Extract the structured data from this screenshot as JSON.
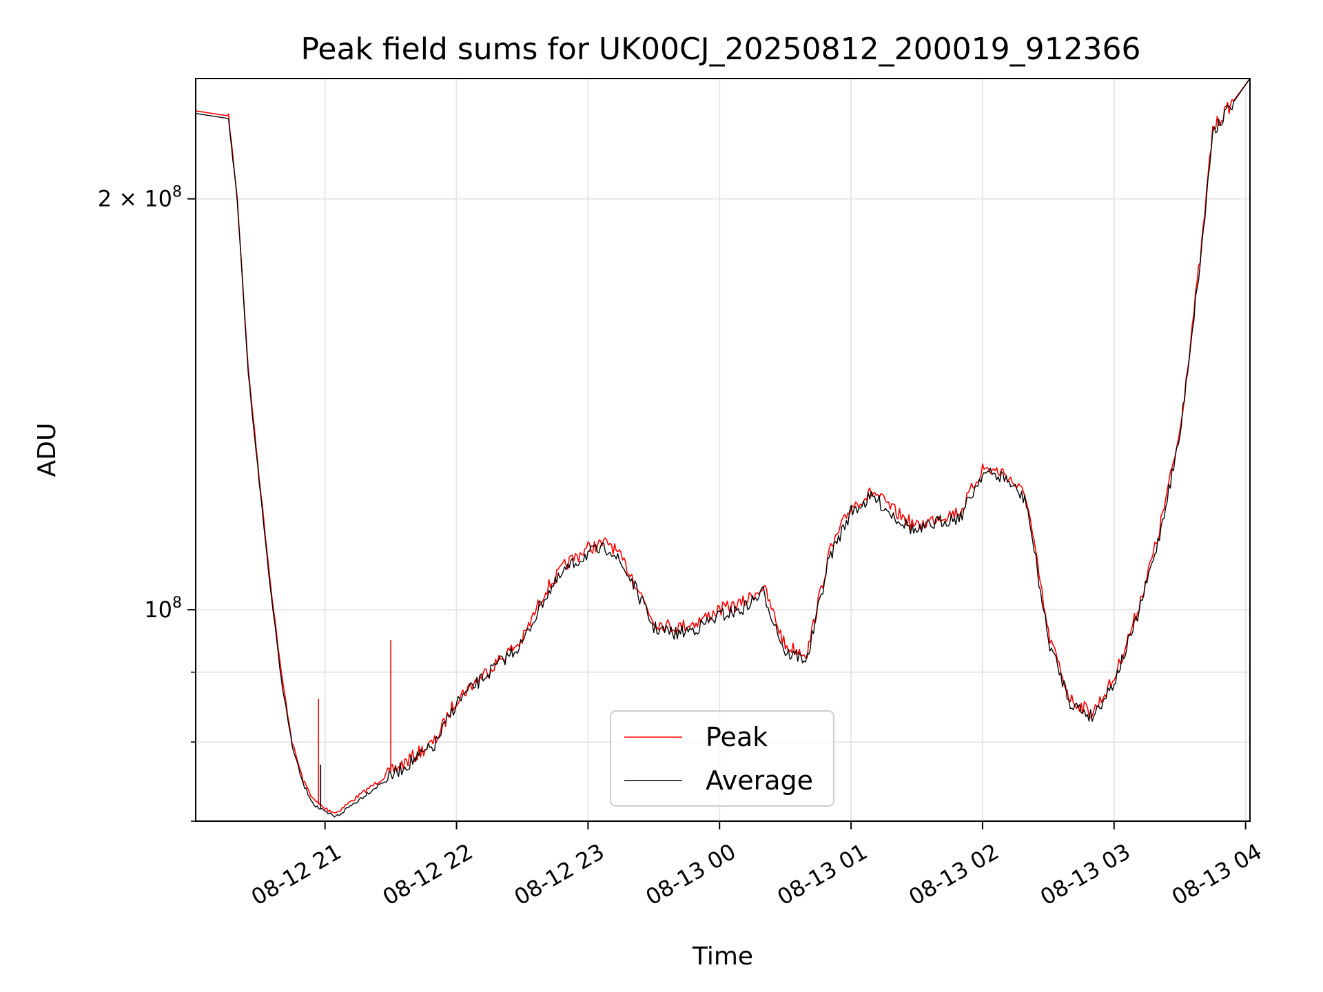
{
  "chart_data": {
    "type": "line",
    "title": "Peak field sums for UK00CJ_20250812_200019_912366",
    "xlabel": "Time",
    "ylabel": "ADU",
    "yscale": "log",
    "grid": true,
    "legend_position": "lower center",
    "xlim": [
      "2025-08-12 20:01",
      "2025-08-13 04:02"
    ],
    "ylim": [
      70000000,
      245000000
    ],
    "x_ticks": [
      "08-12 21",
      "08-12 22",
      "08-12 23",
      "08-13 00",
      "08-13 01",
      "08-13 02",
      "08-13 03",
      "08-13 04"
    ],
    "y_ticks": [
      {
        "value": 100000000,
        "base": "10",
        "exp": "8",
        "prefix": ""
      },
      {
        "value": 200000000,
        "base": "10",
        "exp": "8",
        "prefix": "2 × "
      }
    ],
    "y_minor_ticks": [
      70000000,
      80000000,
      90000000
    ],
    "x": [
      "2025-08-12 20:01",
      "2025-08-12 20:16",
      "2025-08-12 20:20",
      "2025-08-12 20:25",
      "2025-08-12 20:30",
      "2025-08-12 20:35",
      "2025-08-12 20:40",
      "2025-08-12 20:45",
      "2025-08-12 20:50",
      "2025-08-12 20:55",
      "2025-08-12 21:00",
      "2025-08-12 21:05",
      "2025-08-12 21:10",
      "2025-08-12 21:20",
      "2025-08-12 21:30",
      "2025-08-12 21:40",
      "2025-08-12 21:50",
      "2025-08-12 22:00",
      "2025-08-12 22:10",
      "2025-08-12 22:20",
      "2025-08-12 22:30",
      "2025-08-12 22:40",
      "2025-08-12 22:50",
      "2025-08-12 23:00",
      "2025-08-12 23:10",
      "2025-08-12 23:20",
      "2025-08-12 23:30",
      "2025-08-12 23:40",
      "2025-08-12 23:50",
      "2025-08-13 00:00",
      "2025-08-13 00:10",
      "2025-08-13 00:20",
      "2025-08-13 00:30",
      "2025-08-13 00:40",
      "2025-08-13 00:50",
      "2025-08-13 01:00",
      "2025-08-13 01:10",
      "2025-08-13 01:20",
      "2025-08-13 01:30",
      "2025-08-13 01:40",
      "2025-08-13 01:50",
      "2025-08-13 02:00",
      "2025-08-13 02:10",
      "2025-08-13 02:20",
      "2025-08-13 02:30",
      "2025-08-13 02:40",
      "2025-08-13 02:50",
      "2025-08-13 03:00",
      "2025-08-13 03:10",
      "2025-08-13 03:20",
      "2025-08-13 03:30",
      "2025-08-13 03:40",
      "2025-08-13 03:45",
      "2025-08-13 04:02"
    ],
    "series": [
      {
        "name": "Peak",
        "color": "#ff0000",
        "values": [
          232000000,
          230000000,
          200000000,
          150000000,
          125000000,
          105000000,
          90000000,
          80000000,
          75000000,
          72500000,
          71500000,
          71000000,
          72000000,
          74000000,
          76000000,
          78000000,
          80000000,
          86000000,
          89000000,
          92000000,
          95000000,
          103000000,
          108000000,
          111000000,
          112000000,
          106000000,
          98000000,
          97000000,
          98000000,
          100000000,
          101000000,
          104000000,
          94000000,
          93000000,
          110000000,
          119000000,
          122000000,
          118000000,
          115000000,
          117000000,
          118000000,
          127000000,
          126000000,
          121000000,
          96000000,
          86000000,
          84000000,
          89000000,
          99000000,
          113000000,
          135000000,
          185000000,
          225000000,
          245000000
        ]
      },
      {
        "name": "Average",
        "color": "#000000",
        "values": [
          231000000,
          229000000,
          199000000,
          149000000,
          124000000,
          104000000,
          89000000,
          79500000,
          74500000,
          72000000,
          71000000,
          70500000,
          71500000,
          73500000,
          75500000,
          77500000,
          79500000,
          85500000,
          88500000,
          91500000,
          94500000,
          102000000,
          107000000,
          110000000,
          111000000,
          105000000,
          97000000,
          96000000,
          97000000,
          99000000,
          100000000,
          103000000,
          93000000,
          92000000,
          109000000,
          118000000,
          121000000,
          117000000,
          114000000,
          116000000,
          117000000,
          126000000,
          125000000,
          120000000,
          95000000,
          85500000,
          83500000,
          88500000,
          98000000,
          112000000,
          134000000,
          184000000,
          224000000,
          245000000
        ]
      }
    ],
    "spikes": [
      {
        "series": "Peak",
        "x": "2025-08-12 20:57",
        "values": [
          72000000,
          86000000
        ]
      },
      {
        "series": "Peak",
        "x": "2025-08-12 21:30",
        "values": [
          76000000,
          95000000
        ]
      },
      {
        "series": "Average",
        "x": "2025-08-12 20:58",
        "values": [
          71500000,
          77000000
        ]
      }
    ]
  }
}
